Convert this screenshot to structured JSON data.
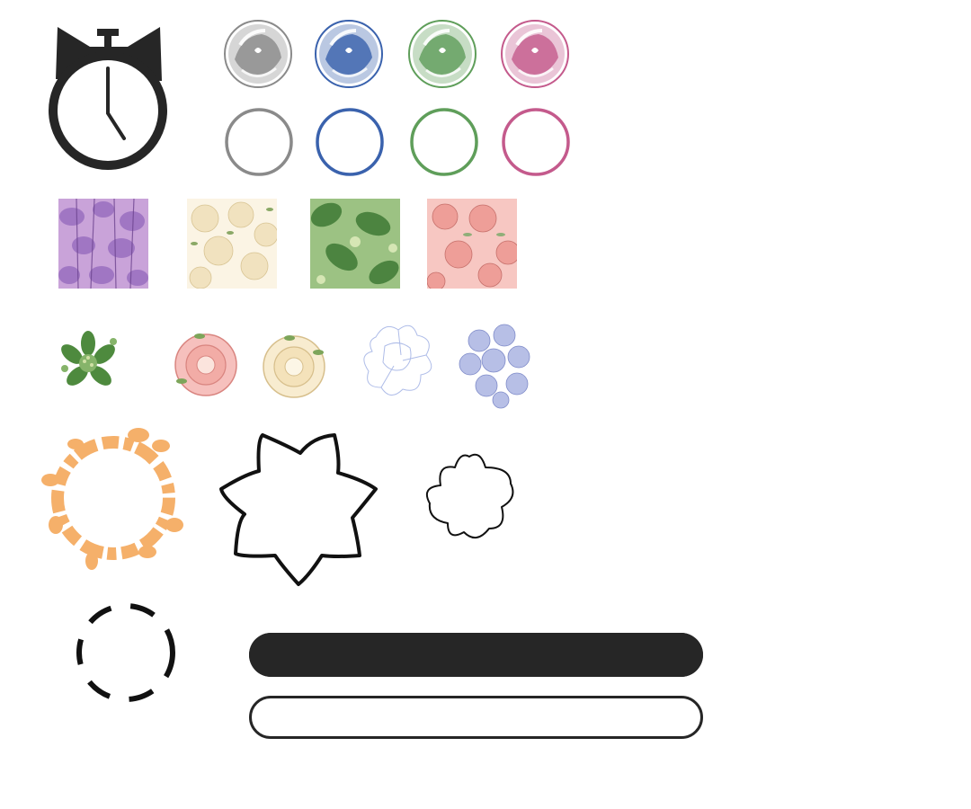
{
  "colors": {
    "ink": "#262626",
    "orb_gray": "#8a8a8a",
    "orb_blue": "#3a62ad",
    "orb_green": "#5f9e5a",
    "orb_pink": "#c45a8c",
    "wreath_orange": "#f5b06a",
    "wisteria": "#9a6fc0",
    "cream": "#f6ecd2",
    "leaf_green": "#4e8a3e",
    "coral": "#ee9e98",
    "periwinkle": "#b7bfe6"
  },
  "icons": {
    "timer": "stopwatch-cat-ears-icon",
    "orbs": [
      "gray-crystal-orb-icon",
      "blue-crystal-orb-icon",
      "green-crystal-orb-icon",
      "pink-crystal-orb-icon"
    ],
    "rings": [
      "gray-ring-icon",
      "blue-ring-icon",
      "green-ring-icon",
      "pink-ring-icon"
    ],
    "patterns": [
      "wisteria-pattern-tile",
      "cream-floral-pattern-tile",
      "green-leaf-pattern-tile",
      "pink-floral-pattern-tile"
    ],
    "flowers": [
      "green-leaf-cluster-icon",
      "pink-camellia-icon",
      "cream-camellia-icon",
      "blue-outline-flower-icon",
      "periwinkle-hydrangea-icon"
    ],
    "frames": [
      "orange-floral-wreath-icon",
      "seven-petal-outline-icon",
      "wavy-star-outline-icon",
      "dashed-circle-icon"
    ],
    "bars": [
      "filled-progress-bar",
      "empty-progress-bar"
    ]
  },
  "progress": {
    "filled_fraction": 1.0,
    "empty_fraction": 0.0
  }
}
